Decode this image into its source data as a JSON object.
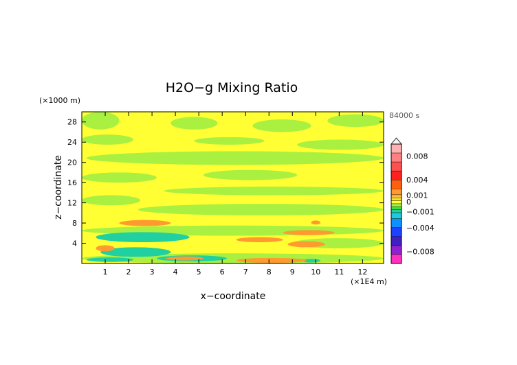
{
  "chart_data": {
    "type": "heatmap",
    "title": "H2O−g Mixing Ratio",
    "xlabel": "x−coordinate",
    "ylabel": "z−coordinate",
    "x_unit": "(×1E4 m)",
    "y_unit": "(×1000 m)",
    "time_label": "84000 s",
    "xlim": [
      0,
      12.9
    ],
    "ylim": [
      0,
      30
    ],
    "x_ticks": [
      "1",
      "2",
      "3",
      "4",
      "5",
      "6",
      "7",
      "8",
      "9",
      "10",
      "11",
      "12"
    ],
    "y_ticks": [
      "4",
      "8",
      "12",
      "16",
      "20",
      "24",
      "28"
    ],
    "colorbar": {
      "range": [
        -0.01,
        0.01
      ],
      "tick_labels": [
        {
          "text": "0.008",
          "v": 0.008
        },
        {
          "text": "0.004",
          "v": 0.004
        },
        {
          "text": "0.001",
          "v": 0.001
        },
        {
          "text": "0",
          "v": 0
        },
        {
          "text": "−0.001",
          "v": -0.001
        },
        {
          "text": "−0.004",
          "v": -0.004
        },
        {
          "text": "−0.008",
          "v": -0.008
        }
      ],
      "levels": [
        {
          "lo": 0.0085,
          "hi": 0.01,
          "color": "#ffb0b0"
        },
        {
          "lo": 0.007,
          "hi": 0.0085,
          "color": "#ff8080"
        },
        {
          "lo": 0.0055,
          "hi": 0.007,
          "color": "#ff5050"
        },
        {
          "lo": 0.004,
          "hi": 0.0055,
          "color": "#ff2020"
        },
        {
          "lo": 0.0025,
          "hi": 0.004,
          "color": "#ff6010"
        },
        {
          "lo": 0.0015,
          "hi": 0.0025,
          "color": "#ff9a30"
        },
        {
          "lo": 0.001,
          "hi": 0.0015,
          "color": "#ffc040"
        },
        {
          "lo": 0.0005,
          "hi": 0.001,
          "color": "#f5e22a"
        },
        {
          "lo": 0.0,
          "hi": 0.0005,
          "color": "#ffff33"
        },
        {
          "lo": -0.0005,
          "hi": 0.0,
          "color": "#aaf040"
        },
        {
          "lo": -0.001,
          "hi": -0.0005,
          "color": "#40e040"
        },
        {
          "lo": -0.0015,
          "hi": -0.001,
          "color": "#20d0a0"
        },
        {
          "lo": -0.0025,
          "hi": -0.0015,
          "color": "#20c8e0"
        },
        {
          "lo": -0.004,
          "hi": -0.0025,
          "color": "#1090ff"
        },
        {
          "lo": -0.0055,
          "hi": -0.004,
          "color": "#2040ff"
        },
        {
          "lo": -0.007,
          "hi": -0.0055,
          "color": "#4020c0"
        },
        {
          "lo": -0.0085,
          "hi": -0.007,
          "color": "#9020d0"
        },
        {
          "lo": -0.01,
          "hi": -0.0085,
          "color": "#ff30c0"
        }
      ]
    },
    "background_color": "#ffff33",
    "regions": [
      {
        "x": [
          0,
          1.6
        ],
        "z": [
          26.5,
          30
        ],
        "value": -0.0003
      },
      {
        "x": [
          3.8,
          5.8
        ],
        "z": [
          26.5,
          29
        ],
        "value": -0.0003
      },
      {
        "x": [
          7.3,
          9.8
        ],
        "z": [
          26,
          28.5
        ],
        "value": -0.0003
      },
      {
        "x": [
          10.5,
          12.9
        ],
        "z": [
          27,
          29.5
        ],
        "value": -0.0003
      },
      {
        "x": [
          0,
          2.2
        ],
        "z": [
          23.5,
          25.5
        ],
        "value": -0.0003
      },
      {
        "x": [
          4.8,
          7.8
        ],
        "z": [
          23.5,
          25
        ],
        "value": -0.0003
      },
      {
        "x": [
          9.2,
          12.9
        ],
        "z": [
          22.5,
          24.5
        ],
        "value": -0.0003
      },
      {
        "x": [
          0.2,
          12.9
        ],
        "z": [
          19.5,
          22.2
        ],
        "value": -0.0003
      },
      {
        "x": [
          0,
          3.2
        ],
        "z": [
          16,
          18
        ],
        "value": -0.0003
      },
      {
        "x": [
          5.2,
          9.2
        ],
        "z": [
          16.5,
          18.5
        ],
        "value": -0.0003
      },
      {
        "x": [
          3.5,
          12.9
        ],
        "z": [
          13.5,
          15.2
        ],
        "value": -0.0003
      },
      {
        "x": [
          0,
          2.5
        ],
        "z": [
          11.5,
          13.5
        ],
        "value": -0.0003
      },
      {
        "x": [
          2.4,
          12.9
        ],
        "z": [
          9.5,
          11.8
        ],
        "value": -0.0003
      },
      {
        "x": [
          0,
          12.9
        ],
        "z": [
          5.5,
          7.5
        ],
        "value": -0.0003
      },
      {
        "x": [
          9,
          12.9
        ],
        "z": [
          3,
          5
        ],
        "value": -0.0003
      },
      {
        "x": [
          0,
          12.9
        ],
        "z": [
          0,
          2
        ],
        "value": -0.0003
      },
      {
        "x": [
          0.6,
          4.6
        ],
        "z": [
          4.2,
          6.2
        ],
        "value": -0.0014
      },
      {
        "x": [
          0.8,
          3.8
        ],
        "z": [
          1.3,
          3.2
        ],
        "value": -0.0014
      },
      {
        "x": [
          0.2,
          2.2
        ],
        "z": [
          0.3,
          1.2
        ],
        "value": -0.0014
      },
      {
        "x": [
          3.2,
          6.2
        ],
        "z": [
          0.4,
          1.6
        ],
        "value": -0.0014
      },
      {
        "x": [
          9.4,
          10.2
        ],
        "z": [
          0.2,
          0.9
        ],
        "value": -0.0014
      },
      {
        "x": [
          1.6,
          3.8
        ],
        "z": [
          7.4,
          8.6
        ],
        "value": 0.0017
      },
      {
        "x": [
          0.6,
          1.4
        ],
        "z": [
          2.4,
          3.6
        ],
        "value": 0.0017
      },
      {
        "x": [
          6.6,
          8.6
        ],
        "z": [
          4.2,
          5.2
        ],
        "value": 0.0017
      },
      {
        "x": [
          8.6,
          10.8
        ],
        "z": [
          5.6,
          6.6
        ],
        "value": 0.0017
      },
      {
        "x": [
          8.8,
          10.4
        ],
        "z": [
          3.2,
          4.4
        ],
        "value": 0.0017
      },
      {
        "x": [
          9.8,
          10.2
        ],
        "z": [
          7.7,
          8.5
        ],
        "value": 0.0017
      },
      {
        "x": [
          3.6,
          5.2
        ],
        "z": [
          0.6,
          1.4
        ],
        "value": 0.0017
      },
      {
        "x": [
          6.6,
          9.6
        ],
        "z": [
          0.1,
          1.1
        ],
        "value": 0.0017
      }
    ]
  }
}
